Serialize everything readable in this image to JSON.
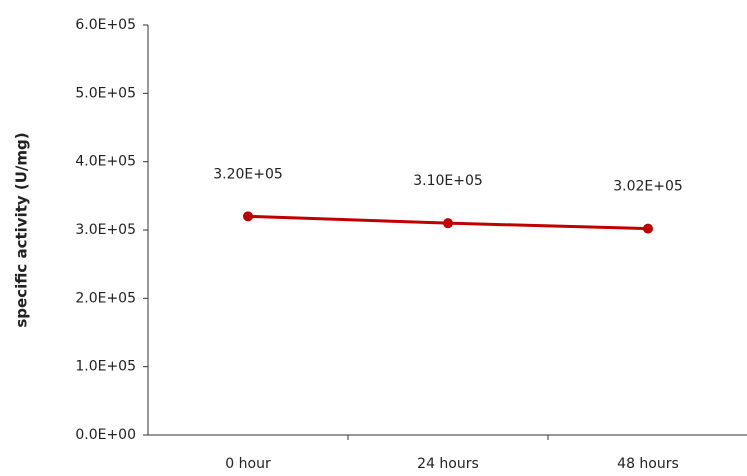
{
  "chart_data": {
    "type": "line",
    "y_label": "specific activity (U/mg)",
    "categories": [
      "0 hour",
      "24 hours",
      "48 hours"
    ],
    "values": [
      320000,
      310000,
      302000
    ],
    "value_labels": [
      "3.20E+05",
      "3.10E+05",
      "3.02E+05"
    ],
    "color": "#c00000",
    "ylim": [
      0,
      600000
    ],
    "yticks": [
      {
        "value": 0,
        "label": "0.0E+00"
      },
      {
        "value": 100000,
        "label": "1.0E+05"
      },
      {
        "value": 200000,
        "label": "2.0E+05"
      },
      {
        "value": 300000,
        "label": "3.0E+05"
      },
      {
        "value": 400000,
        "label": "4.0E+05"
      },
      {
        "value": 500000,
        "label": "5.0E+05"
      },
      {
        "value": 600000,
        "label": "6.0E+05"
      }
    ],
    "grid": false
  }
}
